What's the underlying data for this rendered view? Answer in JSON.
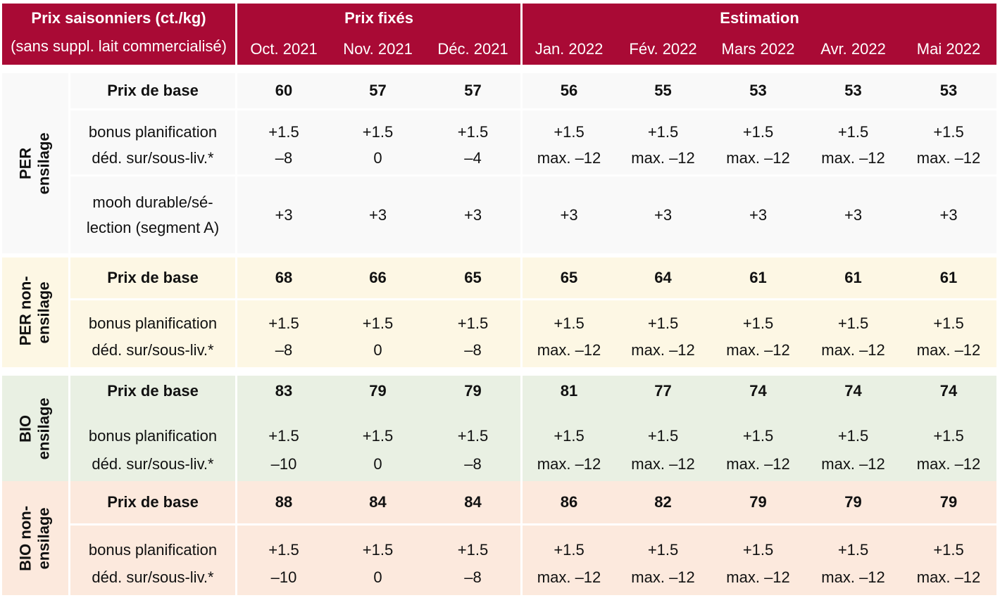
{
  "header": {
    "title": "Prix saisonniers (ct./kg)",
    "subtitle": "(sans suppl. lait commercialisé)",
    "group_fixed": "Prix fixés",
    "group_estimate": "Estimation",
    "months": [
      "Oct. 2021",
      "Nov. 2021",
      "Déc. 2021",
      "Jan. 2022",
      "Fév. 2022",
      "Mars 2022",
      "Avr. 2022",
      "Mai 2022"
    ]
  },
  "sections": [
    {
      "label_line1": "PER",
      "label_line2": "ensilage",
      "rows": [
        {
          "label": "Prix de base",
          "values": [
            "60",
            "57",
            "57",
            "56",
            "55",
            "53",
            "53",
            "53"
          ]
        },
        {
          "label": "bonus planification",
          "values": [
            "+1.5",
            "+1.5",
            "+1.5",
            "+1.5",
            "+1.5",
            "+1.5",
            "+1.5",
            "+1.5"
          ]
        },
        {
          "label": "déd. sur/sous-liv.*",
          "values": [
            "–8",
            "0",
            "–4",
            "max. –12",
            "max. –12",
            "max. –12",
            "max. –12",
            "max. –12"
          ]
        },
        {
          "label_line1": "mooh durable/sé-",
          "label_line2": "lection (segment A)",
          "values": [
            "+3",
            "+3",
            "+3",
            "+3",
            "+3",
            "+3",
            "+3",
            "+3"
          ]
        }
      ]
    },
    {
      "label_line1": "PER non-",
      "label_line2": "ensilage",
      "rows": [
        {
          "label": "Prix de base",
          "values": [
            "68",
            "66",
            "65",
            "65",
            "64",
            "61",
            "61",
            "61"
          ]
        },
        {
          "label": "bonus planification",
          "values": [
            "+1.5",
            "+1.5",
            "+1.5",
            "+1.5",
            "+1.5",
            "+1.5",
            "+1.5",
            "+1.5"
          ]
        },
        {
          "label": "déd. sur/sous-liv.*",
          "values": [
            "–8",
            "0",
            "–8",
            "max. –12",
            "max. –12",
            "max. –12",
            "max. –12",
            "max. –12"
          ]
        }
      ]
    },
    {
      "label_line1": "BIO",
      "label_line2": "ensilage",
      "rows": [
        {
          "label": "Prix de base",
          "values": [
            "83",
            "79",
            "79",
            "81",
            "77",
            "74",
            "74",
            "74"
          ]
        },
        {
          "label": "bonus planification",
          "values": [
            "+1.5",
            "+1.5",
            "+1.5",
            "+1.5",
            "+1.5",
            "+1.5",
            "+1.5",
            "+1.5"
          ]
        },
        {
          "label": "déd. sur/sous-liv.*",
          "values": [
            "–10",
            "0",
            "–8",
            "max. –12",
            "max. –12",
            "max. –12",
            "max. –12",
            "max. –12"
          ]
        }
      ]
    },
    {
      "label_line1": "BIO non-",
      "label_line2": "ensilage",
      "rows": [
        {
          "label": "Prix de base",
          "values": [
            "88",
            "84",
            "84",
            "86",
            "82",
            "79",
            "79",
            "79"
          ]
        },
        {
          "label": "bonus planification",
          "values": [
            "+1.5",
            "+1.5",
            "+1.5",
            "+1.5",
            "+1.5",
            "+1.5",
            "+1.5",
            "+1.5"
          ]
        },
        {
          "label": "déd. sur/sous-liv.*",
          "values": [
            "–10",
            "0",
            "–8",
            "max. –12",
            "max. –12",
            "max. –12",
            "max. –12",
            "max. –12"
          ]
        }
      ]
    }
  ]
}
